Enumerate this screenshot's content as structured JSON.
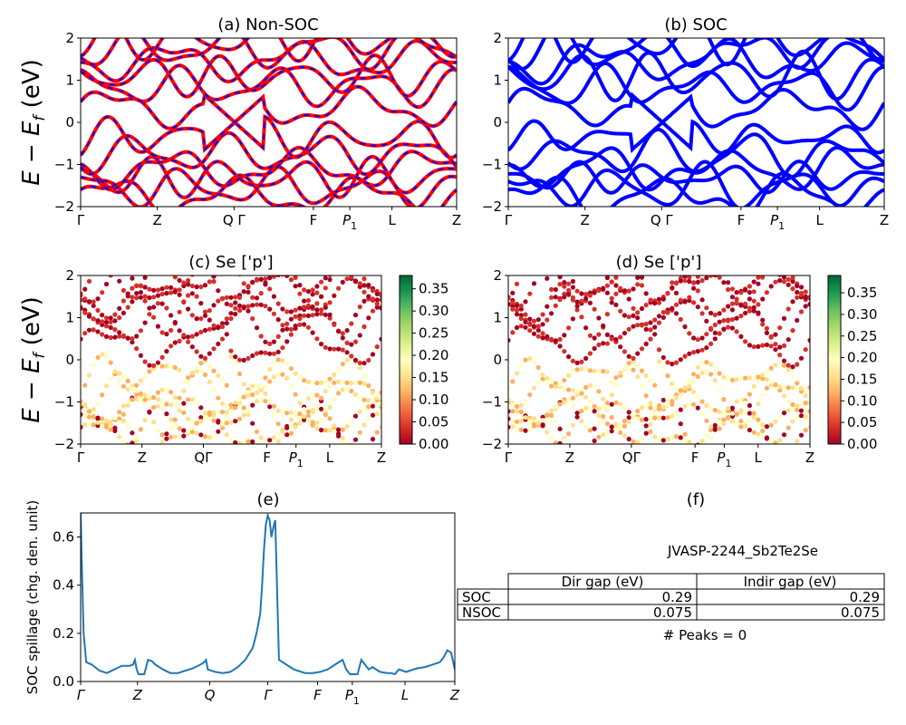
{
  "colors": {
    "nonsoc_solid": "#ff0000",
    "nonsoc_dash": "#0000ff",
    "soc": "#0000ff",
    "spillage": "#1f77b4",
    "cmap": "RdYlGn"
  },
  "labels": {
    "hsym": [
      "Γ",
      "Z",
      "QΓ",
      "F",
      "P1",
      "L",
      "Z"
    ],
    "hsym_spaced": [
      "Γ",
      "Z",
      "Q Γ",
      "F",
      "P1",
      "L",
      "Z"
    ],
    "hsym_e": [
      "Γ",
      "Z",
      "Q",
      "Γ",
      "F",
      "P1",
      "L",
      "Z"
    ],
    "ylabel_energy": "E − E_f (eV)",
    "ylabel_spill": "SOC spillage (chg. den. unit)"
  },
  "chart_data": [
    {
      "id": "a",
      "type": "line",
      "title": "(a) Non-SOC",
      "ylim": [
        -2,
        2
      ],
      "yticks": [
        "−2",
        "−1",
        "0",
        "1",
        "2"
      ],
      "x_ticks": [
        "Γ",
        "Z",
        "Q Γ",
        "F",
        "P1",
        "L",
        "Z"
      ],
      "series": [
        {
          "style": "red solid with blue dashes"
        }
      ]
    },
    {
      "id": "b",
      "type": "line",
      "title": "(b) SOC",
      "ylim": [
        -2,
        2
      ],
      "yticks": [
        "−2",
        "−1",
        "0",
        "1",
        "2"
      ],
      "x_ticks": [
        "Γ",
        "Z",
        "Q Γ",
        "F",
        "P1",
        "L",
        "Z"
      ],
      "series": [
        {
          "style": "blue solid"
        }
      ]
    },
    {
      "id": "c",
      "type": "scatter",
      "title": "(c)  Se ['p']",
      "ylim": [
        -2,
        2
      ],
      "yticks": [
        "−2",
        "−1",
        "0",
        "1",
        "2"
      ],
      "x_ticks": [
        "Γ",
        "Z",
        "QΓ",
        "F",
        "P1",
        "L",
        "Z"
      ],
      "colorbar": {
        "range": [
          0,
          0.38
        ],
        "ticks": [
          "0.00",
          "0.05",
          "0.10",
          "0.15",
          "0.20",
          "0.25",
          "0.30",
          "0.35"
        ]
      }
    },
    {
      "id": "d",
      "type": "scatter",
      "title": "(d) Se ['p']",
      "ylim": [
        -2,
        2
      ],
      "yticks": [
        "−2",
        "−1",
        "0",
        "1",
        "2"
      ],
      "x_ticks": [
        "Γ",
        "Z",
        "QΓ",
        "F",
        "P1",
        "L",
        "Z"
      ],
      "colorbar": {
        "range": [
          0,
          0.39
        ],
        "ticks": [
          "0.00",
          "0.05",
          "0.10",
          "0.15",
          "0.20",
          "0.25",
          "0.30",
          "0.35"
        ]
      }
    },
    {
      "id": "e",
      "type": "line",
      "title": "(e)",
      "ylabel": "SOC spillage (chg. den. unit)",
      "ylim": [
        0,
        0.7
      ],
      "yticks": [
        "0.0",
        "0.2",
        "0.4",
        "0.6"
      ],
      "x_ticks": [
        "Γ",
        "Z",
        "Q",
        "Γ",
        "F",
        "P1",
        "L",
        "Z"
      ],
      "x": [
        0,
        0.003,
        0.008,
        0.015,
        0.03,
        0.05,
        0.07,
        0.09,
        0.11,
        0.13,
        0.14,
        0.145,
        0.15,
        0.155,
        0.16,
        0.17,
        0.175,
        0.18,
        0.19,
        0.2,
        0.22,
        0.24,
        0.26,
        0.28,
        0.3,
        0.32,
        0.33,
        0.335,
        0.34,
        0.36,
        0.38,
        0.4,
        0.42,
        0.44,
        0.46,
        0.47,
        0.48,
        0.485,
        0.49,
        0.495,
        0.5,
        0.505,
        0.51,
        0.515,
        0.52,
        0.53,
        0.55,
        0.57,
        0.6,
        0.62,
        0.64,
        0.66,
        0.68,
        0.69,
        0.7,
        0.71,
        0.72,
        0.73,
        0.74,
        0.75,
        0.76,
        0.77,
        0.78,
        0.8,
        0.82,
        0.83,
        0.84,
        0.85,
        0.86,
        0.87,
        0.88,
        0.89,
        0.9,
        0.92,
        0.94,
        0.96,
        0.97,
        0.98,
        0.99,
        1
      ],
      "y": [
        0.72,
        0.5,
        0.2,
        0.08,
        0.07,
        0.045,
        0.035,
        0.05,
        0.065,
        0.065,
        0.07,
        0.09,
        0.05,
        0.03,
        0.03,
        0.03,
        0.06,
        0.09,
        0.085,
        0.07,
        0.05,
        0.035,
        0.035,
        0.045,
        0.055,
        0.07,
        0.08,
        0.09,
        0.05,
        0.04,
        0.035,
        0.04,
        0.06,
        0.09,
        0.14,
        0.2,
        0.28,
        0.4,
        0.55,
        0.65,
        0.69,
        0.67,
        0.6,
        0.64,
        0.67,
        0.09,
        0.07,
        0.05,
        0.035,
        0.035,
        0.04,
        0.05,
        0.07,
        0.08,
        0.09,
        0.05,
        0.03,
        0.03,
        0.03,
        0.09,
        0.07,
        0.05,
        0.06,
        0.04,
        0.035,
        0.035,
        0.03,
        0.05,
        0.045,
        0.04,
        0.045,
        0.05,
        0.055,
        0.06,
        0.07,
        0.08,
        0.1,
        0.13,
        0.12,
        0.05
      ]
    },
    {
      "id": "f",
      "type": "table",
      "title": "(f)",
      "caption": "JVASP-2244_Sb2Te2Se",
      "columns": [
        "Dir gap (eV)",
        "Indir gap (eV)"
      ],
      "rows": [
        {
          "label": "SOC",
          "values": [
            "0.29",
            "0.29"
          ]
        },
        {
          "label": "NSOC",
          "values": [
            "0.075",
            "0.075"
          ]
        }
      ],
      "footer": "# Peaks = 0"
    }
  ]
}
